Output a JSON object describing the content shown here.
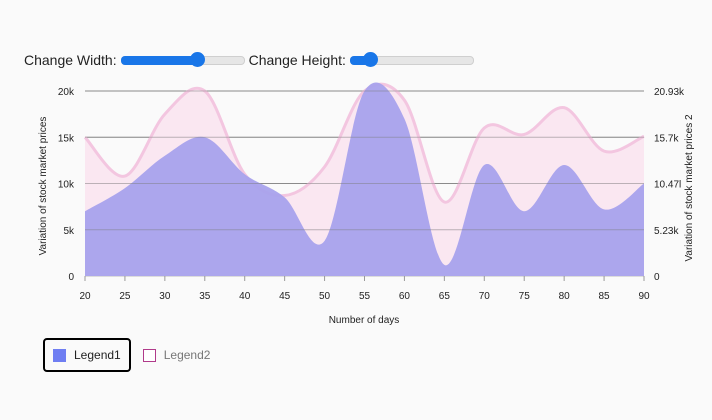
{
  "controls": {
    "width_label": "Change Width:",
    "width_slider_value": 0.62,
    "height_label": "Change Height:",
    "height_slider_value": 0.16
  },
  "colors": {
    "series1_fill": "#a8a2ec",
    "series2_fill": "#f9e4f0",
    "series2_stroke": "#f3c6e0",
    "legend1_swatch": "#6f7ef2",
    "legend2_border": "#b03a8a",
    "grid": "#999999"
  },
  "chart_data": {
    "type": "area",
    "xlabel": "Number of days",
    "ylabel": "Variation of stock market prices",
    "y2label": "Variation of stock market prices 2",
    "x_ticks": [
      "20",
      "25",
      "30",
      "35",
      "40",
      "45",
      "50",
      "55",
      "60",
      "65",
      "70",
      "75",
      "80",
      "85",
      "90"
    ],
    "y_ticks": [
      "0",
      "5k",
      "10k",
      "15k",
      "20k"
    ],
    "y2_ticks": [
      "0",
      "5.23k",
      "10.47l",
      "15.7k",
      "20.93k"
    ],
    "xlim": [
      20,
      90
    ],
    "ylim": [
      0,
      20000
    ],
    "grid": true,
    "legend_position": "bottom-left",
    "x": [
      20,
      25,
      30,
      35,
      40,
      45,
      50,
      55,
      60,
      65,
      70,
      75,
      80,
      85,
      90
    ],
    "series": [
      {
        "name": "Legend1",
        "values": [
          7000,
          9500,
          13000,
          15000,
          11000,
          8500,
          3800,
          20000,
          17000,
          1200,
          12000,
          7000,
          12000,
          7200,
          10000
        ]
      },
      {
        "name": "Legend2",
        "values": [
          15000,
          10800,
          17500,
          20000,
          11000,
          8700,
          11800,
          20000,
          19000,
          8000,
          16000,
          15300,
          18200,
          13500,
          15100
        ]
      }
    ],
    "legend": [
      {
        "label": "Legend1",
        "active": true
      },
      {
        "label": "Legend2",
        "active": false
      }
    ]
  }
}
